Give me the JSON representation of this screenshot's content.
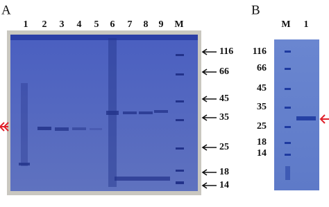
{
  "panels": [
    {
      "label": "A",
      "lanes": [
        "1",
        "2",
        "3",
        "4",
        "5",
        "6",
        "7",
        "8",
        "9",
        "M"
      ],
      "markers": [
        "116",
        "66",
        "45",
        "35",
        "25",
        "18",
        "14"
      ]
    },
    {
      "label": "B",
      "lanes": [
        "M",
        "1"
      ],
      "markers": [
        "116",
        "66",
        "45",
        "35",
        "25",
        "18",
        "14"
      ]
    }
  ]
}
